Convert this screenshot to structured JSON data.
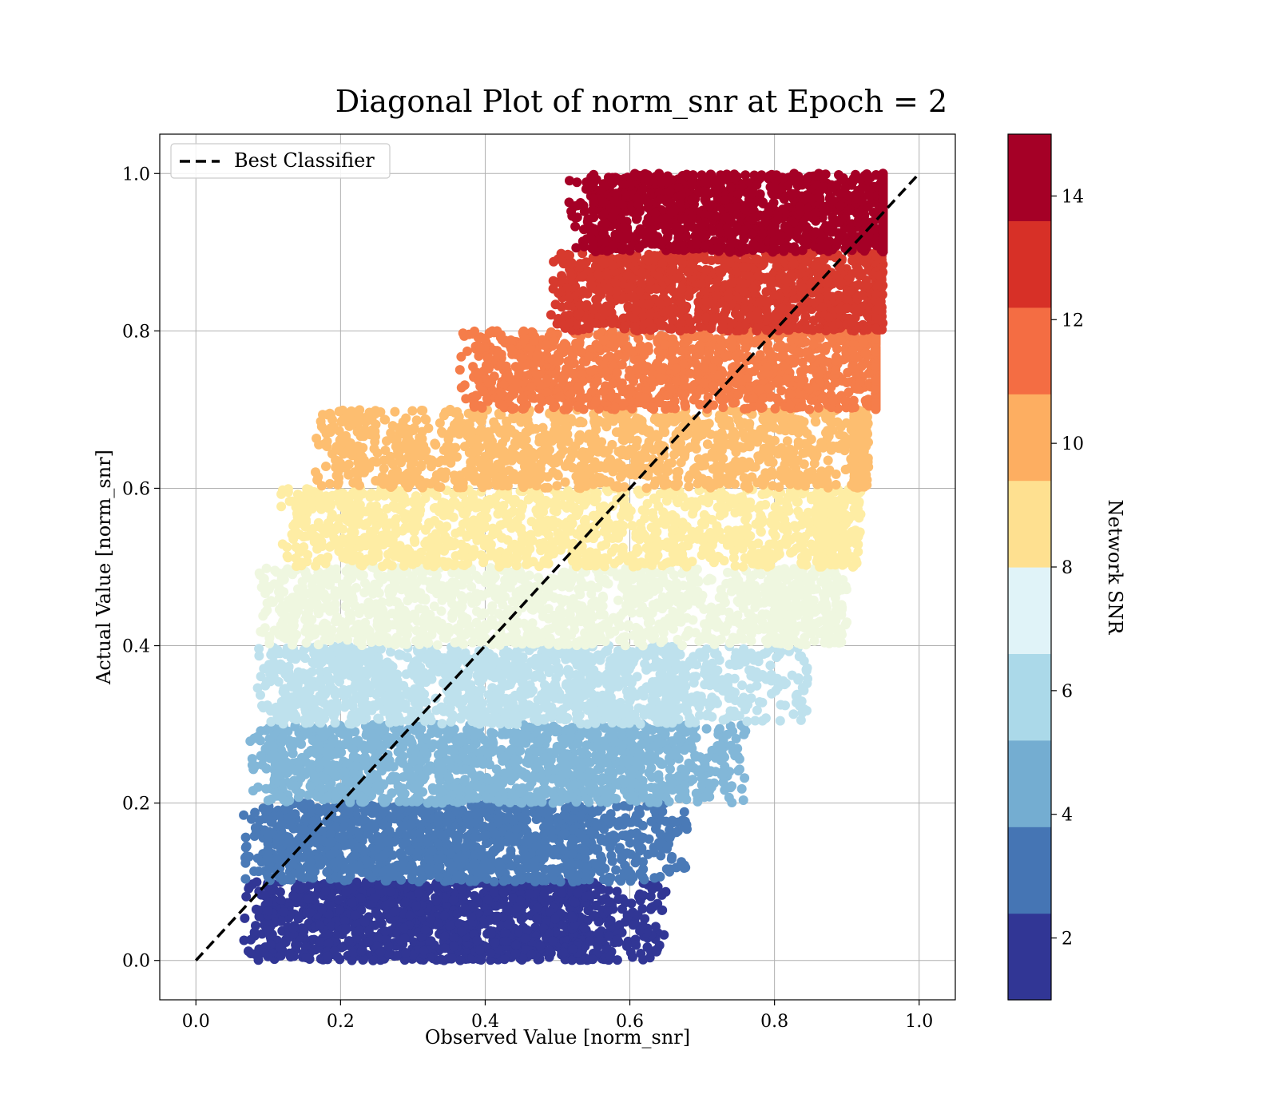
{
  "chart_data": {
    "type": "scatter",
    "title": "Diagonal Plot of norm_snr at Epoch = 2",
    "xlabel": "Observed Value [norm_snr]",
    "ylabel": "Actual Value [norm_snr]",
    "xlim": [
      -0.05,
      1.05
    ],
    "ylim": [
      -0.05,
      1.05
    ],
    "x_ticks": [
      "0.0",
      "0.2",
      "0.4",
      "0.6",
      "0.8",
      "1.0"
    ],
    "y_ticks": [
      "0.0",
      "0.2",
      "0.4",
      "0.6",
      "0.8",
      "1.0"
    ],
    "grid": true,
    "legend": {
      "position": "top-left",
      "entries": [
        "Best Classifier"
      ]
    },
    "reference_line": {
      "name": "Best Classifier",
      "x": [
        0.0,
        1.0
      ],
      "y": [
        0.0,
        1.0
      ],
      "style": "dashed",
      "color": "#000000"
    },
    "colorbar": {
      "label": "Network SNR",
      "range": [
        1,
        15
      ],
      "ticks": [
        "2",
        "4",
        "6",
        "8",
        "10",
        "12",
        "14"
      ],
      "tick_values": [
        2,
        4,
        6,
        8,
        10,
        12,
        14
      ],
      "band_colors": [
        "#313695",
        "#4575b4",
        "#74add1",
        "#abd9e9",
        "#e0f3f8",
        "#fee090",
        "#fdae61",
        "#f46d43",
        "#d73027",
        "#a50026"
      ]
    },
    "bands": [
      {
        "y_range": [
          0.0,
          0.1
        ],
        "color": "#313695",
        "core_x": [
          0.1,
          0.52
        ],
        "tail_x": 0.65
      },
      {
        "y_range": [
          0.1,
          0.2
        ],
        "color": "#4a7ab7",
        "core_x": [
          0.1,
          0.52
        ],
        "tail_x": 0.68
      },
      {
        "y_range": [
          0.2,
          0.3
        ],
        "color": "#82b7d8",
        "core_x": [
          0.11,
          0.6
        ],
        "tail_x": 0.76
      },
      {
        "y_range": [
          0.3,
          0.4
        ],
        "color": "#bee1ed",
        "core_x": [
          0.12,
          0.65
        ],
        "tail_x": 0.85
      },
      {
        "y_range": [
          0.4,
          0.5
        ],
        "color": "#eff7e0",
        "core_x": [
          0.12,
          0.8
        ],
        "tail_x": 0.9
      },
      {
        "y_range": [
          0.5,
          0.6
        ],
        "color": "#feeda4",
        "core_x": [
          0.15,
          0.86
        ],
        "tail_x": 0.92
      },
      {
        "y_range": [
          0.6,
          0.7
        ],
        "color": "#fdbe70",
        "core_x": [
          0.2,
          0.91
        ],
        "tail_x": 0.93
      },
      {
        "y_range": [
          0.7,
          0.8
        ],
        "color": "#f57d4a",
        "core_x": [
          0.4,
          0.94
        ],
        "tail_x": 0.94
      },
      {
        "y_range": [
          0.8,
          0.9
        ],
        "color": "#d73a2e",
        "core_x": [
          0.52,
          0.94
        ],
        "tail_x": 0.95
      },
      {
        "y_range": [
          0.9,
          1.0
        ],
        "color": "#a50026",
        "core_x": [
          0.55,
          0.95
        ],
        "tail_x": 0.95
      }
    ]
  }
}
